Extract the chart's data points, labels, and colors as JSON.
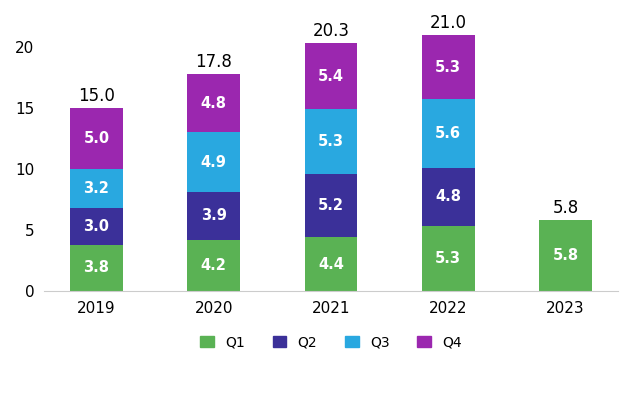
{
  "years": [
    "2019",
    "2020",
    "2021",
    "2022",
    "2023"
  ],
  "Q1": [
    3.8,
    4.2,
    4.4,
    5.3,
    5.8
  ],
  "Q2": [
    3.0,
    3.9,
    5.2,
    4.8,
    0.0
  ],
  "Q3": [
    3.2,
    4.9,
    5.3,
    5.6,
    0.0
  ],
  "Q4": [
    5.0,
    4.8,
    5.4,
    5.3,
    0.0
  ],
  "totals": [
    15.0,
    17.8,
    20.3,
    21.0,
    5.8
  ],
  "colors": {
    "Q1": "#5ab254",
    "Q2": "#3b3099",
    "Q3": "#29a8e0",
    "Q4": "#9b27af"
  },
  "bar_width": 0.45,
  "ylim": [
    0,
    22
  ],
  "yticks": [
    0,
    5,
    10,
    15,
    20
  ],
  "label_color_inside": "#ffffff",
  "label_color_outside": "#000000",
  "label_fontsize": 10.5,
  "total_fontsize": 12,
  "legend_fontsize": 10,
  "tick_fontsize": 11
}
